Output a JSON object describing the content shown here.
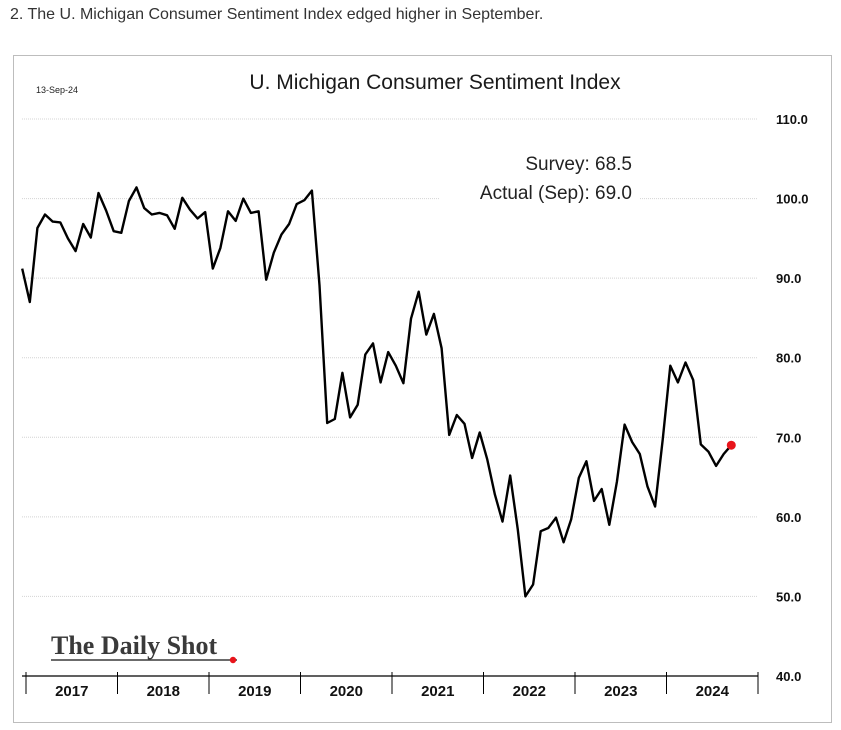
{
  "caption": "2. The U. Michigan Consumer Sentiment Index edged higher in September.",
  "chart_data": {
    "type": "line",
    "title": "U. Michigan Consumer Sentiment Index",
    "date_stamp": "13-Sep-24",
    "source_logo": "The Daily Shot",
    "xlabel": "",
    "ylabel": "",
    "ylim": [
      40,
      110
    ],
    "yticks": [
      "110.0",
      "100.0",
      "90.0",
      "80.0",
      "70.0",
      "60.0",
      "50.0",
      "40.0"
    ],
    "ytick_values": [
      110,
      100,
      90,
      80,
      70,
      60,
      50,
      40
    ],
    "xlim": [
      2017,
      2025
    ],
    "xticks": [
      "2017",
      "2018",
      "2019",
      "2020",
      "2021",
      "2022",
      "2023",
      "2024"
    ],
    "grid": true,
    "annotations": [
      "Survey:  68.5",
      "Actual (Sep):  69.0"
    ],
    "line_color": "#000000",
    "marker_color": "#e8141b",
    "series": [
      {
        "x": [
          2016.958,
          2017.042,
          2017.125,
          2017.208,
          2017.292,
          2017.375,
          2017.458,
          2017.542,
          2017.625,
          2017.708,
          2017.792,
          2017.875,
          2017.958,
          2018.042,
          2018.125,
          2018.208,
          2018.292,
          2018.375,
          2018.458,
          2018.542,
          2018.625,
          2018.708,
          2018.792,
          2018.875,
          2018.958,
          2019.042,
          2019.125,
          2019.208,
          2019.292,
          2019.375,
          2019.458,
          2019.542,
          2019.625,
          2019.708,
          2019.792,
          2019.875,
          2019.958,
          2020.042,
          2020.125,
          2020.208,
          2020.292,
          2020.375,
          2020.458,
          2020.542,
          2020.625,
          2020.708,
          2020.792,
          2020.875,
          2020.958,
          2021.042,
          2021.125,
          2021.208,
          2021.292,
          2021.375,
          2021.458,
          2021.542,
          2021.625,
          2021.708,
          2021.792,
          2021.875,
          2021.958,
          2022.042,
          2022.125,
          2022.208,
          2022.292,
          2022.375,
          2022.458,
          2022.542,
          2022.625,
          2022.708,
          2022.792,
          2022.875,
          2022.958,
          2023.042,
          2023.125,
          2023.208,
          2023.292,
          2023.375,
          2023.458,
          2023.542,
          2023.625,
          2023.708,
          2023.792,
          2023.875,
          2023.958,
          2024.042,
          2024.125,
          2024.208,
          2024.292,
          2024.375,
          2024.458,
          2024.542,
          2024.625,
          2024.708
        ],
        "values": [
          91.2,
          87.0,
          96.3,
          98.0,
          97.1,
          97.0,
          95.0,
          93.4,
          96.8,
          95.1,
          100.7,
          98.5,
          95.9,
          95.7,
          99.7,
          101.4,
          98.8,
          98.0,
          98.2,
          97.9,
          96.2,
          100.1,
          98.6,
          97.5,
          98.3,
          91.2,
          93.8,
          98.4,
          97.2,
          100.0,
          98.2,
          98.4,
          89.8,
          93.2,
          95.5,
          96.8,
          99.3,
          99.8,
          101.0,
          89.1,
          71.8,
          72.3,
          78.1,
          72.5,
          74.1,
          80.4,
          81.8,
          76.9,
          80.7,
          79.0,
          76.8,
          84.9,
          88.3,
          82.9,
          85.5,
          81.2,
          70.3,
          72.8,
          71.7,
          67.4,
          70.6,
          67.2,
          62.8,
          59.4,
          65.2,
          58.4,
          50.0,
          51.5,
          58.2,
          58.6,
          59.9,
          56.8,
          59.7,
          64.9,
          67.0,
          62.0,
          63.5,
          59.0,
          64.4,
          71.6,
          69.4,
          67.9,
          63.8,
          61.3,
          69.7,
          79.0,
          76.9,
          79.4,
          77.2,
          69.1,
          68.2,
          66.4,
          67.9,
          69.0
        ]
      }
    ]
  }
}
